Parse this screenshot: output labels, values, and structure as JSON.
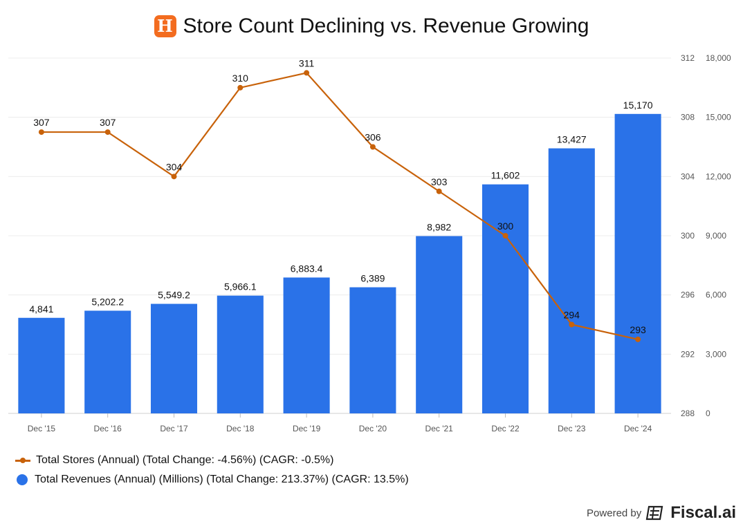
{
  "header": {
    "logo_letter": "H",
    "title": "Store Count Declining vs. Revenue Growing"
  },
  "colors": {
    "bars": "#2a72e8",
    "line": "#c8620a",
    "grid": "#ececec",
    "axis_text": "#555555"
  },
  "chart_data": {
    "type": "bar",
    "title": "Store Count Declining vs. Revenue Growing",
    "categories": [
      "Dec '15",
      "Dec '16",
      "Dec '17",
      "Dec '18",
      "Dec '19",
      "Dec '20",
      "Dec '21",
      "Dec '22",
      "Dec '23",
      "Dec '24"
    ],
    "series": [
      {
        "name": "Total Revenues (Annual) (Millions)",
        "type": "bar",
        "axis": "right",
        "values": [
          4841,
          5202.2,
          5549.2,
          5966.1,
          6883.4,
          6389,
          8982,
          11602,
          13427,
          15170
        ],
        "labels": [
          "4,841",
          "5,202.2",
          "5,549.2",
          "5,966.1",
          "6,883.4",
          "6,389",
          "8,982",
          "11,602",
          "13,427",
          "15,170"
        ]
      },
      {
        "name": "Total Stores (Annual)",
        "type": "line",
        "axis": "left",
        "values": [
          307,
          307,
          304,
          310,
          311,
          306,
          303,
          300,
          294,
          293
        ],
        "labels": [
          "307",
          "307",
          "304",
          "310",
          "311",
          "306",
          "303",
          "300",
          "294",
          "293"
        ]
      }
    ],
    "y_stores": {
      "ylim": [
        288,
        312
      ],
      "ticks": [
        "312",
        "308",
        "304",
        "300",
        "296",
        "292",
        "288"
      ]
    },
    "y_revenue": {
      "ylim": [
        0,
        18000
      ],
      "ticks": [
        "18,000",
        "15,000",
        "12,000",
        "9,000",
        "6,000",
        "3,000",
        "0"
      ]
    }
  },
  "legend": {
    "stores": "Total Stores (Annual) (Total Change: -4.56%) (CAGR: -0.5%)",
    "revenues": "Total Revenues (Annual) (Millions) (Total Change: 213.37%) (CAGR: 13.5%)"
  },
  "footer": {
    "powered": "Powered by",
    "brand": "Fiscal.ai"
  }
}
